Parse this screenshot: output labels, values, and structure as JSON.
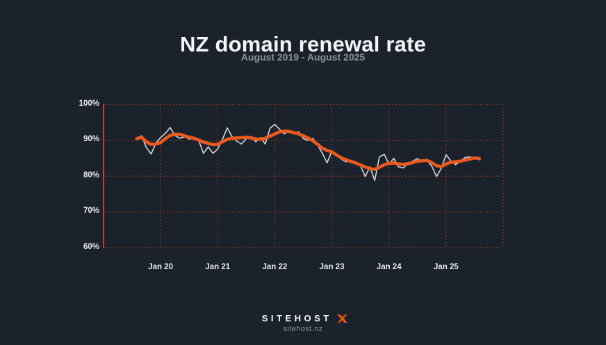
{
  "colors": {
    "background": "#1b222c",
    "title": "#f5f6f8",
    "subtitle": "#8d939c",
    "tick_label": "#eceef0",
    "axis_line": "#c2451a",
    "gridline": "#a03a14",
    "monthly_line": "#d3d7db",
    "smoothed_line": "#ea5a1f"
  },
  "footer": {
    "brand": "SITEHOST",
    "brand_mark": "sitehost-x-mark",
    "domain": "sitehost.nz"
  },
  "chart_data": {
    "type": "line",
    "title": "NZ domain renewal rate",
    "subtitle": "August 2019 - August 2025",
    "start": "2019-08",
    "end": "2025-08",
    "frequency": "monthly",
    "ylim": [
      60,
      100
    ],
    "grid": "dotted",
    "legend": "none",
    "x_domain_hint": [
      "2019-01",
      "2026-01"
    ],
    "y_axis": {
      "ticks": [
        {
          "value": 100,
          "label": "100%"
        },
        {
          "value": 90,
          "label": "90%"
        },
        {
          "value": 80,
          "label": "80%"
        },
        {
          "value": 70,
          "label": "70%"
        },
        {
          "value": 60,
          "label": "60%"
        }
      ]
    },
    "x_axis": {
      "ticks": [
        {
          "month_offset": 5,
          "label": "Jan 20"
        },
        {
          "month_offset": 17,
          "label": "Jan 21"
        },
        {
          "month_offset": 29,
          "label": "Jan 22"
        },
        {
          "month_offset": 41,
          "label": "Jan 23"
        },
        {
          "month_offset": 53,
          "label": "Jan 24"
        },
        {
          "month_offset": 65,
          "label": "Jan 25"
        }
      ]
    },
    "series": [
      {
        "name": "monthly",
        "color": "#d3d7db",
        "values": [
          90.7,
          91.3,
          88.0,
          86.2,
          89.3,
          90.8,
          92.0,
          93.6,
          91.4,
          90.6,
          91.0,
          90.4,
          90.6,
          90.0,
          86.4,
          88.2,
          86.4,
          87.6,
          90.3,
          93.5,
          91.1,
          89.8,
          89.0,
          90.5,
          91.1,
          89.6,
          90.8,
          89.0,
          93.4,
          94.5,
          93.1,
          91.8,
          92.8,
          91.8,
          92.4,
          90.5,
          90.0,
          90.6,
          88.7,
          86.4,
          83.7,
          87.1,
          86.0,
          84.7,
          84.0,
          84.4,
          84.0,
          83.0,
          79.9,
          82.6,
          78.8,
          85.4,
          86.1,
          83.3,
          85.0,
          82.6,
          82.3,
          83.6,
          84.2,
          84.9,
          84.1,
          84.4,
          82.8,
          79.9,
          82.2,
          86.0,
          84.3,
          83.2,
          84.2,
          85.2,
          85.4,
          84.9,
          84.6
        ]
      },
      {
        "name": "smoothed",
        "color": "#ea5a1f",
        "values": [
          90.5,
          90.9,
          89.6,
          88.9,
          89.0,
          89.4,
          90.5,
          91.4,
          91.7,
          91.7,
          91.3,
          90.9,
          90.6,
          90.1,
          89.5,
          89.2,
          88.8,
          88.9,
          89.6,
          90.3,
          90.6,
          90.7,
          90.8,
          90.9,
          90.7,
          90.4,
          90.3,
          90.6,
          91.2,
          91.8,
          92.4,
          92.6,
          92.5,
          92.2,
          91.8,
          91.3,
          90.7,
          89.9,
          88.9,
          87.8,
          87.2,
          86.8,
          85.9,
          85.1,
          84.6,
          84.1,
          83.7,
          83.1,
          82.6,
          82.1,
          81.9,
          82.5,
          83.2,
          83.6,
          83.7,
          83.4,
          83.3,
          83.5,
          83.8,
          84.2,
          84.3,
          84.4,
          83.8,
          82.9,
          82.7,
          83.4,
          83.9,
          84.0,
          84.2,
          84.5,
          84.8,
          85.1,
          84.9
        ]
      }
    ]
  }
}
